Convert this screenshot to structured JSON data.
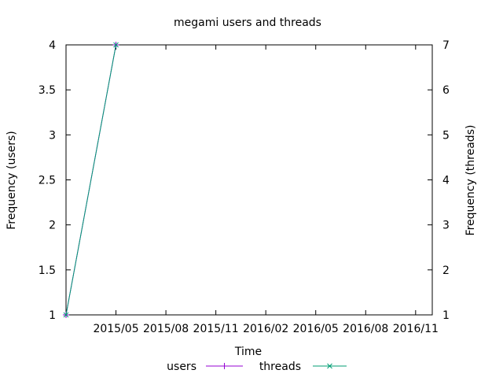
{
  "chart_data": {
    "type": "line",
    "title": "megami users and threads",
    "xlabel": "Time",
    "ylabel_left": "Frequency (users)",
    "ylabel_right": "Frequency (threads)",
    "x_ticks": [
      "2015/05",
      "2015/08",
      "2015/11",
      "2016/02",
      "2016/05",
      "2016/08",
      "2016/11"
    ],
    "y_left_ticks": [
      "1",
      "1.5",
      "2",
      "2.5",
      "3",
      "3.5",
      "4"
    ],
    "y_right_ticks": [
      "1",
      "2",
      "3",
      "4",
      "5",
      "6",
      "7"
    ],
    "x_range": [
      "2015-02",
      "2016-12"
    ],
    "y_left_range": [
      1,
      4
    ],
    "y_right_range": [
      1,
      7
    ],
    "grid": false,
    "legend_position": "bottom-center",
    "series": [
      {
        "name": "users",
        "axis": "left",
        "color": "#9400d3",
        "marker": "+",
        "points": [
          [
            "2015-02",
            1
          ],
          [
            "2015-05",
            4
          ]
        ]
      },
      {
        "name": "threads",
        "axis": "right",
        "color": "#009e73",
        "marker": "x",
        "points": [
          [
            "2015-02",
            1
          ],
          [
            "2015-05",
            7
          ]
        ]
      }
    ]
  }
}
